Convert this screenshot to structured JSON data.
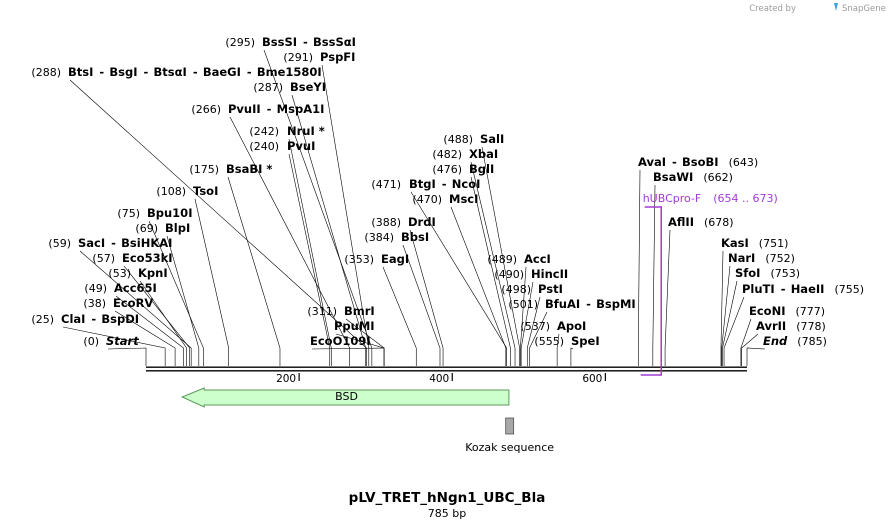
{
  "credit": {
    "created_by": "Created by",
    "brand": "SnapGene"
  },
  "map": {
    "title": "pLV_TRET_hNgn1_UBC_Bla",
    "length_label": "785 bp",
    "total_bp": 785,
    "ticks": [
      {
        "bp": 200,
        "label": "200"
      },
      {
        "bp": 400,
        "label": "400"
      },
      {
        "bp": 600,
        "label": "600"
      }
    ]
  },
  "sites": [
    {
      "bp": 295,
      "pos": "(295)",
      "names": [
        "BssSI",
        "BssSαI"
      ]
    },
    {
      "bp": 291,
      "pos": "(291)",
      "names": [
        "PspFI"
      ]
    },
    {
      "bp": 288,
      "pos": "(288)",
      "names": [
        "BtsI",
        "BsgI",
        "BtsαI",
        "BaeGI",
        "Bme1580I"
      ]
    },
    {
      "bp": 287,
      "pos": "(287)",
      "names": [
        "BseYI"
      ]
    },
    {
      "bp": 266,
      "pos": "(266)",
      "names": [
        "PvuII",
        "MspA1I"
      ]
    },
    {
      "bp": 242,
      "pos": "(242)",
      "names": [
        "NruI *"
      ]
    },
    {
      "bp": 240,
      "pos": "(240)",
      "names": [
        "PvuI"
      ]
    },
    {
      "bp": 175,
      "pos": "(175)",
      "names": [
        "BsaBI *"
      ]
    },
    {
      "bp": 108,
      "pos": "(108)",
      "names": [
        "TsoI"
      ]
    },
    {
      "bp": 75,
      "pos": "(75)",
      "names": [
        "Bpu10I"
      ]
    },
    {
      "bp": 69,
      "pos": "(69)",
      "names": [
        "BlpI"
      ]
    },
    {
      "bp": 59,
      "pos": "(59)",
      "names": [
        "SacI",
        "BsiHKAI"
      ]
    },
    {
      "bp": 57,
      "pos": "(57)",
      "names": [
        "Eco53kI"
      ]
    },
    {
      "bp": 53,
      "pos": "(53)",
      "names": [
        "KpnI"
      ]
    },
    {
      "bp": 49,
      "pos": "(49)",
      "names": [
        "Acc65I"
      ]
    },
    {
      "bp": 38,
      "pos": "(38)",
      "names": [
        "EcoRV"
      ]
    },
    {
      "bp": 25,
      "pos": "(25)",
      "names": [
        "ClaI",
        "BspDI"
      ]
    },
    {
      "bp": 0,
      "pos": "(0)",
      "names": [
        "Start"
      ],
      "italic": true
    },
    {
      "bp": 311,
      "pos": "(311)",
      "names": [
        "BmrI"
      ]
    },
    {
      "bp": 311,
      "pos": "",
      "names": [
        "PpuMI"
      ]
    },
    {
      "bp": 311,
      "pos": "",
      "names": [
        "EcoO109I"
      ]
    },
    {
      "bp": 353,
      "pos": "(353)",
      "names": [
        "EagI"
      ]
    },
    {
      "bp": 384,
      "pos": "(384)",
      "names": [
        "BbsI"
      ]
    },
    {
      "bp": 388,
      "pos": "(388)",
      "names": [
        "DrdI"
      ]
    },
    {
      "bp": 488,
      "pos": "(488)",
      "names": [
        "SalI"
      ]
    },
    {
      "bp": 482,
      "pos": "(482)",
      "names": [
        "XbaI"
      ]
    },
    {
      "bp": 476,
      "pos": "(476)",
      "names": [
        "BglI"
      ]
    },
    {
      "bp": 471,
      "pos": "(471)",
      "names": [
        "BtgI",
        "NcoI"
      ]
    },
    {
      "bp": 470,
      "pos": "(470)",
      "names": [
        "MscI"
      ]
    },
    {
      "bp": 489,
      "pos": "(489)",
      "names": [
        "AccI"
      ]
    },
    {
      "bp": 490,
      "pos": "(490)",
      "names": [
        "HincII"
      ]
    },
    {
      "bp": 498,
      "pos": "(498)",
      "names": [
        "PstI"
      ]
    },
    {
      "bp": 501,
      "pos": "(501)",
      "names": [
        "BfuAI",
        "BspMI"
      ]
    },
    {
      "bp": 537,
      "pos": "(537)",
      "names": [
        "ApoI"
      ]
    },
    {
      "bp": 555,
      "pos": "(555)",
      "names": [
        "SpeI"
      ]
    },
    {
      "bp": 643,
      "pos": "(643)",
      "names": [
        "AvaI",
        "BsoBI"
      ]
    },
    {
      "bp": 662,
      "pos": "(662)",
      "names": [
        "BsaWI"
      ]
    },
    {
      "bp": 678,
      "pos": "(678)",
      "names": [
        "AflII"
      ]
    },
    {
      "bp": 751,
      "pos": "(751)",
      "names": [
        "KasI"
      ]
    },
    {
      "bp": 752,
      "pos": "(752)",
      "names": [
        "NarI"
      ]
    },
    {
      "bp": 753,
      "pos": "(753)",
      "names": [
        "SfoI"
      ]
    },
    {
      "bp": 755,
      "pos": "(755)",
      "names": [
        "PluTI",
        "HaeII"
      ]
    },
    {
      "bp": 777,
      "pos": "(777)",
      "names": [
        "EcoNI"
      ]
    },
    {
      "bp": 778,
      "pos": "(778)",
      "names": [
        "AvrII"
      ]
    },
    {
      "bp": 785,
      "pos": "(785)",
      "names": [
        "End"
      ],
      "italic": true
    }
  ],
  "features": [
    {
      "label": "BSD",
      "start": 76,
      "end": 474,
      "direction": "reverse",
      "color": "#ccffcc",
      "stroke": "#5c9a5c"
    },
    {
      "label": "Kozak sequence",
      "start": 470,
      "end": 480,
      "direction": "none",
      "color": "#a8a8a8",
      "stroke": "#555555"
    }
  ],
  "primers": [
    {
      "label": "hUBCpro-F",
      "range": "(654 .. 673)",
      "start": 654,
      "end": 673,
      "color": "#a23ad6"
    }
  ]
}
